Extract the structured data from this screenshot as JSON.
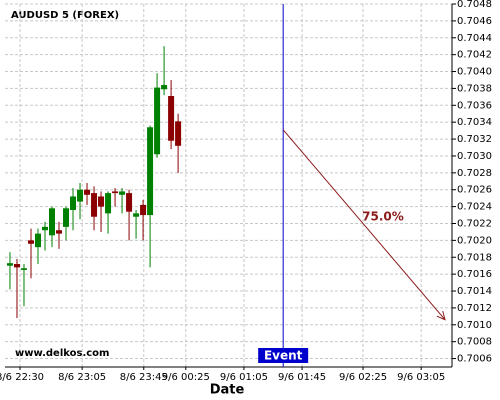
{
  "chart_data": {
    "type": "candlestick",
    "title": "AUDUSD 5 (FOREX)",
    "x_label": "Date",
    "watermark": "www.delkos.com",
    "x": [
      0,
      1,
      2,
      3,
      4,
      5,
      6,
      7,
      8,
      9,
      10,
      11,
      12,
      13,
      14,
      15,
      16,
      17,
      18,
      19,
      20,
      21,
      22,
      23,
      24
    ],
    "open": [
      0.7017,
      0.70172,
      0.70165,
      0.702,
      0.70192,
      0.70212,
      0.70206,
      0.70212,
      0.70216,
      0.70236,
      0.70246,
      0.7026,
      0.70256,
      0.70252,
      0.70232,
      0.70258,
      0.70254,
      0.70256,
      0.70228,
      0.70242,
      0.7023,
      0.70302,
      0.70379,
      0.70371,
      0.70341
    ],
    "high": [
      0.70186,
      0.70178,
      0.70172,
      0.70214,
      0.70214,
      0.70222,
      0.7024,
      0.70222,
      0.7024,
      0.70262,
      0.70268,
      0.70268,
      0.70264,
      0.70258,
      0.70258,
      0.70262,
      0.70262,
      0.7026,
      0.70236,
      0.70248,
      0.70336,
      0.70398,
      0.7043,
      0.7039,
      0.7035
    ],
    "low": [
      0.70142,
      0.70108,
      0.70122,
      0.70155,
      0.70172,
      0.70188,
      0.70192,
      0.7019,
      0.702,
      0.70212,
      0.70225,
      0.70242,
      0.70212,
      0.7021,
      0.70208,
      0.7024,
      0.70232,
      0.702,
      0.70202,
      0.702,
      0.70168,
      0.70298,
      0.70372,
      0.70308,
      0.7028
    ],
    "close": [
      0.70173,
      0.70168,
      0.70167,
      0.70196,
      0.70208,
      0.70216,
      0.70238,
      0.70208,
      0.70238,
      0.70252,
      0.7026,
      0.70254,
      0.70228,
      0.7024,
      0.70256,
      0.70256,
      0.70258,
      0.70234,
      0.70232,
      0.7023,
      0.70334,
      0.70381,
      0.70384,
      0.70318,
      0.70312
    ],
    "up_color": "#008000",
    "down_color": "#8b0000",
    "xlim": [
      -0.71,
      63.1
    ],
    "xticks": [
      {
        "value": 1.43,
        "label": "8/6 22:30"
      },
      {
        "value": 10.3,
        "label": "8/6 23:05"
      },
      {
        "value": 19.1,
        "label": "8/6 23:45"
      },
      {
        "value": 25.1,
        "label": "9/6 00:25"
      },
      {
        "value": 33.4,
        "label": "9/6 01:05"
      },
      {
        "value": 41.7,
        "label": "9/6 01:45"
      },
      {
        "value": 50.4,
        "label": "9/6 02:25"
      },
      {
        "value": 58.7,
        "label": "9/6 03:05"
      }
    ],
    "ylim": [
      0.7005,
      0.7048
    ],
    "yticks": [
      0.7006,
      0.7008,
      {
        "value": 0.701,
        "label": "0.7010"
      },
      0.7012,
      0.7014,
      0.7016,
      0.7018,
      {
        "value": 0.702,
        "label": "0.7020"
      },
      0.7022,
      0.7024,
      0.7026,
      0.7028,
      {
        "value": 0.703,
        "label": "0.7030"
      },
      0.7032,
      0.7034,
      0.7036,
      0.7038,
      {
        "value": 0.704,
        "label": "0.7040"
      },
      0.7042,
      0.7044,
      0.7046,
      0.7048
    ],
    "grid": true,
    "event": {
      "x": 39,
      "label": "Event",
      "color": "#0000cc"
    },
    "projection": {
      "x": [
        39,
        62.1
      ],
      "y": [
        0.70331,
        0.70106
      ],
      "label": "75.0%",
      "color": "#8b1a1a"
    }
  }
}
